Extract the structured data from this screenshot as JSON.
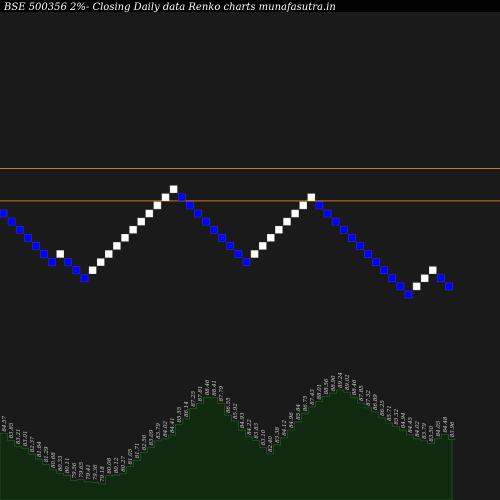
{
  "header": {
    "title": "BSE 500356  2%-  Closing Daily data  Renko  charts munafasutra.in"
  },
  "colors": {
    "background": "#000000",
    "panel": "#1a1a1a",
    "up_brick": "#ffffff",
    "down_brick": "#0000ff",
    "reference_line": "#c87814",
    "volume_fill": "#0f2a0f",
    "volume_stroke": "#1f5a1f"
  },
  "chart_data": {
    "type": "renko",
    "brick_size_percent": 2,
    "bricks": [
      "down",
      "down",
      "down",
      "down",
      "down",
      "down",
      "down",
      "up",
      "down",
      "down",
      "down",
      "up",
      "up",
      "up",
      "up",
      "up",
      "up",
      "up",
      "up",
      "up",
      "up",
      "up",
      "down",
      "down",
      "down",
      "down",
      "down",
      "down",
      "down",
      "down",
      "down",
      "up",
      "up",
      "up",
      "up",
      "up",
      "up",
      "up",
      "up",
      "down",
      "down",
      "down",
      "down",
      "down",
      "down",
      "down",
      "down",
      "down",
      "down",
      "down",
      "down",
      "up",
      "up",
      "up",
      "down",
      "down"
    ],
    "reference_levels": [
      1,
      5
    ],
    "price_labels": [
      "84.57",
      "83.85",
      "83.21",
      "83.01",
      "82.37",
      "81.84",
      "81.29",
      "80.68",
      "80.33",
      "80.11",
      "79.56",
      "79.65",
      "79.41",
      "79.36",
      "79.18",
      "80.08",
      "80.12",
      "80.27",
      "81.05",
      "81.71",
      "82.56",
      "83.09",
      "83.79",
      "84.02",
      "84.41",
      "85.55",
      "86.14",
      "87.25",
      "87.81",
      "88.46",
      "88.41",
      "87.79",
      "86.55",
      "85.92",
      "84.93",
      "84.22",
      "83.83",
      "83.10",
      "82.40",
      "83.38",
      "84.12",
      "84.96",
      "85.84",
      "86.75",
      "87.43",
      "88.01",
      "88.56",
      "88.90",
      "89.24",
      "89.02",
      "88.46",
      "87.85",
      "87.32",
      "86.89",
      "86.25",
      "85.71",
      "85.32",
      "84.94",
      "84.45",
      "84.02",
      "83.79",
      "83.50",
      "84.05",
      "84.48",
      "83.96"
    ]
  }
}
